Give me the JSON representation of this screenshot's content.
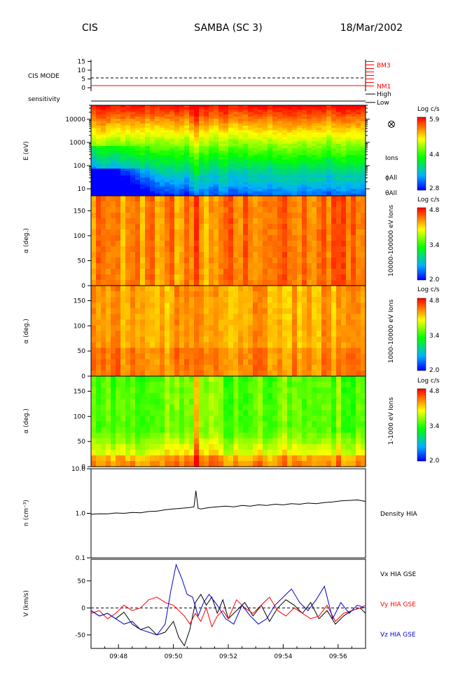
{
  "header": {
    "instrument": "CIS",
    "title": "SAMBA (SC 3)",
    "date": "18/Mar/2002"
  },
  "chart_data": [
    {
      "type": "line",
      "panel": "cis-mode",
      "ylabel": "CIS MODE",
      "yticks": [
        "15",
        "10",
        "5",
        "0"
      ],
      "ylim": [
        -2,
        16
      ],
      "dashed_level": 5,
      "mode_levels": [
        {
          "label": "BM3",
          "value": 15,
          "color": "#ff0000"
        },
        {
          "label": "NM1",
          "value": 1,
          "color": "#ff0000"
        }
      ],
      "current_mode": 1
    },
    {
      "type": "table",
      "panel": "sensitivity",
      "ylabel": "sensitivity",
      "levels": [
        "High",
        "Low"
      ],
      "value": "Low"
    },
    {
      "type": "heatmap",
      "panel": "energy-spectrogram",
      "ylabel": "E (eV)",
      "yscale": "log",
      "ylim": [
        5,
        40000
      ],
      "yticks": [
        "10000",
        "1000",
        "100",
        "10"
      ],
      "side_labels": [
        "Ions",
        "ϕAll",
        "θAll"
      ],
      "colorbar": {
        "title": "Log c/s",
        "ticks": [
          "5.9",
          "4.4",
          "2.8"
        ],
        "range": [
          2.8,
          5.9
        ]
      }
    },
    {
      "type": "heatmap",
      "panel": "pitch-high",
      "ylabel": "α (deg.)",
      "ylim": [
        0,
        180
      ],
      "yticks": [
        "150",
        "100",
        "50",
        "0"
      ],
      "side_label": "10000-100000 eV Ions",
      "colorbar": {
        "title": "Log c/s",
        "ticks": [
          "4.8",
          "3.4",
          "2.0"
        ],
        "range": [
          2.0,
          4.8
        ]
      }
    },
    {
      "type": "heatmap",
      "panel": "pitch-mid",
      "ylabel": "α (deg.)",
      "ylim": [
        0,
        180
      ],
      "yticks": [
        "150",
        "100",
        "50",
        "0"
      ],
      "side_label": "1000-10000 eV Ions",
      "colorbar": {
        "title": "Log c/s",
        "ticks": [
          "4.8",
          "3.4",
          "2.0"
        ],
        "range": [
          2.0,
          4.8
        ]
      }
    },
    {
      "type": "heatmap",
      "panel": "pitch-low",
      "ylabel": "α (deg.)",
      "ylim": [
        0,
        180
      ],
      "yticks": [
        "150",
        "100",
        "50",
        "0"
      ],
      "side_label": "1-1000 eV Ions",
      "colorbar": {
        "title": "Log c/s",
        "ticks": [
          "4.8",
          "3.4",
          "2.0"
        ],
        "range": [
          2.0,
          4.8
        ]
      }
    },
    {
      "type": "line",
      "panel": "density",
      "ylabel": "n (cm⁻³)",
      "yscale": "log",
      "ylim": [
        0.1,
        10
      ],
      "yticks": [
        "10.0",
        "1.0",
        "0.1"
      ],
      "xlim": [
        47.0,
        57.0
      ],
      "series": [
        {
          "name": "Density HIA",
          "color": "#000000",
          "x": [
            47.0,
            47.3,
            47.6,
            47.9,
            48.2,
            48.5,
            48.8,
            49.1,
            49.4,
            49.7,
            50.0,
            50.3,
            50.6,
            50.75,
            50.82,
            50.9,
            51.0,
            51.3,
            51.6,
            51.9,
            52.2,
            52.5,
            52.8,
            53.1,
            53.4,
            53.7,
            54.0,
            54.3,
            54.6,
            54.9,
            55.2,
            55.5,
            55.8,
            56.1,
            56.4,
            56.7,
            57.0
          ],
          "y": [
            0.95,
            0.98,
            0.97,
            1.02,
            1.0,
            1.05,
            1.03,
            1.1,
            1.12,
            1.2,
            1.25,
            1.3,
            1.35,
            1.4,
            3.2,
            1.3,
            1.25,
            1.35,
            1.4,
            1.45,
            1.4,
            1.5,
            1.45,
            1.55,
            1.5,
            1.6,
            1.55,
            1.65,
            1.6,
            1.7,
            1.65,
            1.75,
            1.8,
            1.9,
            1.95,
            2.0,
            1.85
          ]
        }
      ]
    },
    {
      "type": "line",
      "panel": "velocity",
      "ylabel": "V (km/s)",
      "ylim": [
        -75,
        90
      ],
      "yticks": [
        "50",
        "0",
        "-50"
      ],
      "xlim": [
        47.0,
        57.0
      ],
      "xticks": [
        "09:48",
        "09:50",
        "09:52",
        "09:54",
        "09:56"
      ],
      "xtick_values": [
        48,
        50,
        52,
        54,
        56
      ],
      "zero_line": true,
      "series": [
        {
          "name": "Vx HIA GSE",
          "color": "#000000",
          "x": [
            47.0,
            47.3,
            47.6,
            47.9,
            48.2,
            48.5,
            48.8,
            49.1,
            49.4,
            49.7,
            50.0,
            50.2,
            50.4,
            50.6,
            50.8,
            51.0,
            51.2,
            51.4,
            51.6,
            51.8,
            52.0,
            52.3,
            52.6,
            52.9,
            53.2,
            53.5,
            53.8,
            54.1,
            54.4,
            54.7,
            55.0,
            55.3,
            55.6,
            55.9,
            56.2,
            56.5,
            56.8,
            57.0
          ],
          "y": [
            -5,
            -15,
            -10,
            -20,
            -8,
            -30,
            -40,
            -35,
            -50,
            -45,
            -25,
            -55,
            -70,
            -40,
            10,
            25,
            5,
            20,
            -10,
            15,
            -20,
            -5,
            10,
            -15,
            5,
            -25,
            0,
            15,
            5,
            -10,
            10,
            -20,
            -5,
            -30,
            -15,
            -5,
            0,
            -10
          ]
        },
        {
          "name": "Vy HIA GSE",
          "color": "#ff0000",
          "x": [
            47.0,
            47.3,
            47.6,
            47.9,
            48.2,
            48.5,
            48.8,
            49.1,
            49.4,
            49.7,
            50.0,
            50.2,
            50.4,
            50.6,
            50.8,
            51.0,
            51.2,
            51.4,
            51.6,
            51.8,
            52.0,
            52.3,
            52.6,
            52.9,
            53.2,
            53.5,
            53.8,
            54.1,
            54.4,
            54.7,
            55.0,
            55.3,
            55.6,
            55.9,
            56.2,
            56.5,
            56.8,
            57.0
          ],
          "y": [
            -10,
            -5,
            -20,
            -10,
            5,
            -5,
            0,
            15,
            20,
            10,
            5,
            -5,
            -15,
            -30,
            -10,
            -25,
            0,
            -35,
            -15,
            -5,
            -20,
            15,
            0,
            -10,
            5,
            20,
            -5,
            -15,
            0,
            -10,
            -20,
            -15,
            5,
            -25,
            -10,
            -5,
            0,
            5
          ]
        },
        {
          "name": "Vz HIA GSE",
          "color": "#0000cc",
          "x": [
            47.0,
            47.3,
            47.6,
            47.9,
            48.2,
            48.5,
            48.8,
            49.1,
            49.4,
            49.7,
            49.9,
            50.1,
            50.3,
            50.5,
            50.7,
            50.9,
            51.1,
            51.3,
            51.6,
            51.9,
            52.2,
            52.5,
            52.8,
            53.1,
            53.4,
            53.7,
            54.0,
            54.3,
            54.6,
            54.9,
            55.2,
            55.5,
            55.8,
            56.1,
            56.4,
            56.7,
            57.0
          ],
          "y": [
            -5,
            -15,
            -10,
            -20,
            -30,
            -25,
            -40,
            -45,
            -50,
            -30,
            30,
            80,
            55,
            25,
            20,
            -15,
            10,
            25,
            5,
            -20,
            -30,
            5,
            -15,
            -30,
            -20,
            5,
            20,
            35,
            10,
            -5,
            15,
            40,
            -20,
            10,
            -10,
            5,
            0
          ]
        }
      ]
    }
  ]
}
